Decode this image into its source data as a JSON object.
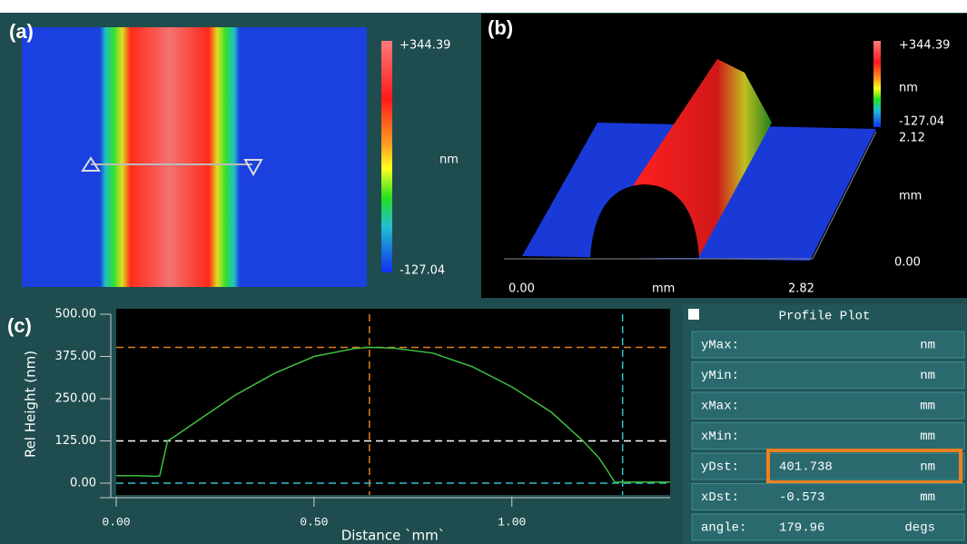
{
  "panels": {
    "a": {
      "label": "(a)",
      "colorbar": {
        "max": "+344.39",
        "unit": "nm",
        "min": "-127.04"
      }
    },
    "b": {
      "label": "(b)",
      "colorbar": {
        "max": "+344.39",
        "unit": "nm",
        "min": "-127.04"
      },
      "axes": {
        "x_start": "0.00",
        "x_unit": "mm",
        "x_end": "2.82",
        "y_end": "2.12",
        "y_unit": "mm",
        "y_start": "0.00"
      }
    }
  },
  "chart_data": {
    "type": "line",
    "label": "(c)",
    "xlabel": "Distance `mm`",
    "ylabel": "Rel Height (nm)",
    "x": [
      0,
      0.05,
      0.1,
      0.11,
      0.13,
      0.15,
      0.2,
      0.3,
      0.4,
      0.5,
      0.6,
      0.64,
      0.7,
      0.8,
      0.9,
      1.0,
      1.1,
      1.18,
      1.22,
      1.24,
      1.26,
      1.3,
      1.4
    ],
    "values": [
      22,
      22,
      20,
      22,
      125,
      140,
      180,
      260,
      325,
      375,
      398,
      402,
      400,
      385,
      345,
      285,
      210,
      125,
      75,
      40,
      3,
      3,
      3
    ],
    "color": "#3fbf3f",
    "xlim": [
      0,
      1.4
    ],
    "ylim": [
      -35,
      500
    ],
    "xticks": [
      {
        "value": 0,
        "label": "0.00"
      },
      {
        "value": 0.5,
        "label": "0.50"
      },
      {
        "value": 1,
        "label": "1.00"
      }
    ],
    "yticks": [
      {
        "value": 0,
        "label": "0.00"
      },
      {
        "value": 125,
        "label": "125.00"
      },
      {
        "value": 250,
        "label": "250.00"
      },
      {
        "value": 375,
        "label": "375.00"
      },
      {
        "value": 500,
        "label": "500.00"
      }
    ],
    "cursors": [
      {
        "axis": "x",
        "value": 0.64,
        "color": "#e08020"
      },
      {
        "axis": "y",
        "value": 401.738,
        "color": "#e08020"
      },
      {
        "axis": "y",
        "value": 125,
        "color": "#ffffff"
      },
      {
        "axis": "y",
        "value": 0,
        "color": "#30c0c8"
      },
      {
        "axis": "x",
        "value": 1.28,
        "color": "#30c0c8"
      }
    ]
  },
  "profile_plot": {
    "title": "Profile Plot",
    "rows": [
      {
        "label": "yMax:",
        "unit": "nm"
      },
      {
        "label": "yMin:",
        "unit": "nm"
      },
      {
        "label": "xMax:",
        "unit": "mm"
      },
      {
        "label": "xMin:",
        "unit": "mm"
      },
      {
        "label": "yDst:",
        "value": "401.738",
        "unit": "nm"
      },
      {
        "label": "xDst:",
        "value": "-0.573",
        "unit": "mm"
      },
      {
        "label": "angle:",
        "value": "179.96",
        "unit": "degs"
      }
    ]
  }
}
